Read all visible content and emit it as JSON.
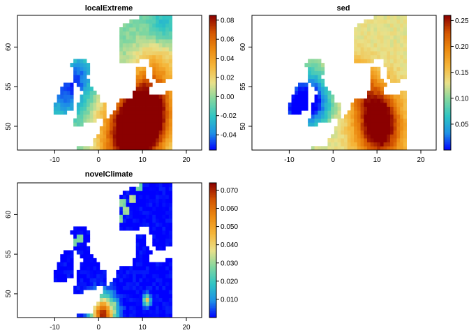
{
  "chart_data": [
    {
      "type": "heatmap",
      "title": "localExtreme",
      "x_ticks": [
        -10,
        0,
        10,
        20
      ],
      "y_ticks": [
        50,
        55,
        60
      ],
      "xlim": [
        -18.5,
        23.5
      ],
      "ylim": [
        47,
        64
      ],
      "legend_placement": "right",
      "color_range": [
        -0.056,
        0.085
      ],
      "legend_ticks": [
        "0.08",
        "0.06",
        "0.04",
        "0.02",
        "0.00",
        "-0.02",
        "-0.04"
      ],
      "legend_values": [
        0.08,
        0.06,
        0.04,
        0.02,
        0.0,
        -0.02,
        -0.04
      ],
      "colormap": [
        "#0000ff",
        "#1e90e6",
        "#2ec4c4",
        "#7fd6a0",
        "#e9e18a",
        "#f5b63a",
        "#ec8a10",
        "#d35400",
        "#8b0000"
      ],
      "field": {
        "base": -0.005,
        "hotspots": [
          {
            "lon": 11.5,
            "lat": 51.5,
            "value": 0.082,
            "radius": 3.2
          },
          {
            "lon": 8.0,
            "lat": 50.0,
            "value": 0.055,
            "radius": 4.2
          },
          {
            "lon": 5.5,
            "lat": 47.8,
            "value": 0.04,
            "radius": 3.5
          },
          {
            "lon": 14.0,
            "lat": 58.0,
            "value": 0.025,
            "radius": 3.0
          }
        ],
        "coldspots": [
          {
            "lon": -7.5,
            "lat": 54.5,
            "value": -0.045,
            "radius": 2.5
          },
          {
            "lon": -3.5,
            "lat": 56.5,
            "value": -0.03,
            "radius": 2.0
          },
          {
            "lon": 14.5,
            "lat": 62.5,
            "value": -0.03,
            "radius": 2.0
          }
        ]
      }
    },
    {
      "type": "heatmap",
      "title": "sed",
      "x_ticks": [
        -10,
        0,
        10,
        20
      ],
      "y_ticks": [
        50,
        55,
        60
      ],
      "xlim": [
        -18.5,
        23.5
      ],
      "ylim": [
        47,
        64
      ],
      "legend_placement": "right",
      "color_range": [
        0.0,
        0.26
      ],
      "legend_ticks": [
        "0.25",
        "0.20",
        "0.15",
        "0.10",
        "0.05"
      ],
      "legend_values": [
        0.25,
        0.2,
        0.15,
        0.1,
        0.05
      ],
      "colormap": [
        "#0000ff",
        "#1e90e6",
        "#2ec4c4",
        "#7fd6a0",
        "#e9e18a",
        "#f5b63a",
        "#ec8a10",
        "#d35400",
        "#8b0000"
      ],
      "field": {
        "base": 0.13,
        "hotspots": [
          {
            "lon": 10.0,
            "lat": 51.5,
            "value": 0.25,
            "radius": 2.8
          },
          {
            "lon": 11.0,
            "lat": 48.5,
            "value": 0.21,
            "radius": 3.2
          },
          {
            "lon": 6.0,
            "lat": 55.5,
            "value": 0.2,
            "radius": 2.0
          }
        ],
        "coldspots": [
          {
            "lon": -9.0,
            "lat": 52.0,
            "value": 0.02,
            "radius": 2.5
          },
          {
            "lon": -5.5,
            "lat": 54.5,
            "value": 0.05,
            "radius": 2.5
          },
          {
            "lon": -3.0,
            "lat": 52.5,
            "value": 0.07,
            "radius": 2.0
          }
        ]
      }
    },
    {
      "type": "heatmap",
      "title": "novelClimate",
      "x_ticks": [
        -10,
        0,
        10,
        20
      ],
      "y_ticks": [
        50,
        55,
        60
      ],
      "xlim": [
        -18.5,
        23.5
      ],
      "ylim": [
        47,
        64
      ],
      "legend_placement": "right",
      "color_range": [
        0.0,
        0.074
      ],
      "legend_ticks": [
        "0.070",
        "0.060",
        "0.050",
        "0.040",
        "0.030",
        "0.020",
        "0.010"
      ],
      "legend_values": [
        0.07,
        0.06,
        0.05,
        0.04,
        0.03,
        0.02,
        0.01
      ],
      "colormap": [
        "#0000ff",
        "#1e90e6",
        "#2ec4c4",
        "#7fd6a0",
        "#e9e18a",
        "#f5b63a",
        "#ec8a10",
        "#d35400",
        "#8b0000"
      ],
      "field": {
        "base": 0.0,
        "hotspots": [
          {
            "lon": 1.0,
            "lat": 47.4,
            "value": 0.07,
            "radius": 1.6
          },
          {
            "lon": 11.0,
            "lat": 49.2,
            "value": 0.042,
            "radius": 0.5
          }
        ],
        "speckles": [
          {
            "lon": 5.5,
            "lat": 61.5,
            "value": 0.028
          },
          {
            "lon": 6.5,
            "lat": 60.5,
            "value": 0.03
          },
          {
            "lon": 7.5,
            "lat": 62.0,
            "value": 0.032
          },
          {
            "lon": -5.5,
            "lat": 56.5,
            "value": 0.025
          },
          {
            "lon": -4.0,
            "lat": 57.0,
            "value": 0.027
          },
          {
            "lon": 9.0,
            "lat": 63.5,
            "value": 0.025
          },
          {
            "lon": 5.0,
            "lat": 59.5,
            "value": 0.028
          },
          {
            "lon": 3.5,
            "lat": 48.2,
            "value": 0.03
          },
          {
            "lon": -1.0,
            "lat": 48.0,
            "value": 0.025
          }
        ]
      }
    }
  ]
}
